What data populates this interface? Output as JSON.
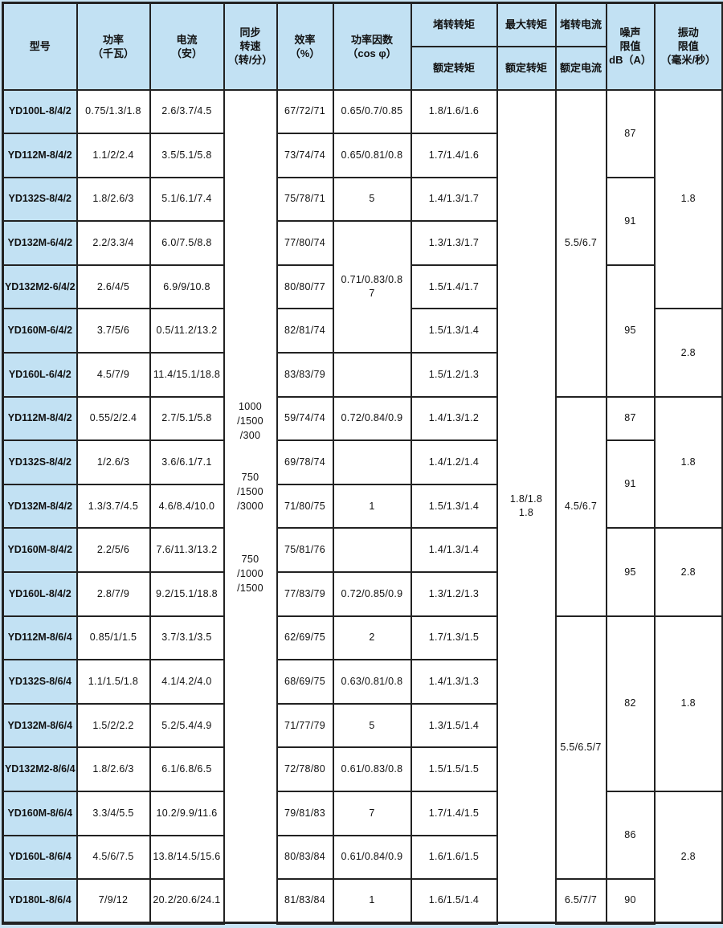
{
  "colors": {
    "page_background": "#c9e4f4",
    "header_background": "#c2e1f3",
    "cell_background": "#ffffff",
    "border": "#222222"
  },
  "header": {
    "model": "型号",
    "power": "功率\n（千瓦）",
    "current": "电流\n（安）",
    "speed": "同步\n转速\n（转/分）",
    "efficiency": "效率\n（%）",
    "cosphi": "功率因数\n（cos φ）",
    "locked_torque": "堵转转矩",
    "rated_torque": "额定转矩",
    "max_torque": "最大转矩",
    "rated_torque2": "额定转矩",
    "locked_current": "堵转电流",
    "rated_current": "额定电流",
    "noise": "噪声\n限值\ndB（A）",
    "vibration": "振动\n限值\n（毫米/秒）"
  },
  "body": {
    "columns": [
      {
        "key": "model",
        "cells": [
          {
            "s": 1,
            "t": "YD100L-8/4/2"
          },
          {
            "s": 1,
            "t": "YD112M-8/4/2"
          },
          {
            "s": 1,
            "t": "YD132S-8/4/2"
          },
          {
            "s": 1,
            "t": "YD132M-6/4/2"
          },
          {
            "s": 1,
            "t": "YD132M2-6/4/2"
          },
          {
            "s": 1,
            "t": "YD160M-6/4/2"
          },
          {
            "s": 1,
            "t": "YD160L-6/4/2"
          },
          {
            "s": 1,
            "t": "YD112M-8/4/2"
          },
          {
            "s": 1,
            "t": "YD132S-8/4/2"
          },
          {
            "s": 1,
            "t": "YD132M-8/4/2"
          },
          {
            "s": 1,
            "t": "YD160M-8/4/2"
          },
          {
            "s": 1,
            "t": "YD160L-8/4/2"
          },
          {
            "s": 1,
            "t": "YD112M-8/6/4"
          },
          {
            "s": 1,
            "t": "YD132S-8/6/4"
          },
          {
            "s": 1,
            "t": "YD132M-8/6/4"
          },
          {
            "s": 1,
            "t": "YD132M2-8/6/4"
          },
          {
            "s": 1,
            "t": "YD160M-8/6/4"
          },
          {
            "s": 1,
            "t": "YD160L-8/6/4"
          },
          {
            "s": 1,
            "t": "YD180L-8/6/4"
          }
        ]
      },
      {
        "key": "power",
        "cells": [
          {
            "s": 1,
            "t": "0.75/1.3/1.8"
          },
          {
            "s": 1,
            "t": "1.1/2/2.4"
          },
          {
            "s": 1,
            "t": "1.8/2.6/3"
          },
          {
            "s": 1,
            "t": "2.2/3.3/4"
          },
          {
            "s": 1,
            "t": "2.6/4/5"
          },
          {
            "s": 1,
            "t": "3.7/5/6"
          },
          {
            "s": 1,
            "t": "4.5/7/9"
          },
          {
            "s": 1,
            "t": "0.55/2/2.4"
          },
          {
            "s": 1,
            "t": "1/2.6/3"
          },
          {
            "s": 1,
            "t": "1.3/3.7/4.5"
          },
          {
            "s": 1,
            "t": "2.2/5/6"
          },
          {
            "s": 1,
            "t": "2.8/7/9"
          },
          {
            "s": 1,
            "t": "0.85/1/1.5"
          },
          {
            "s": 1,
            "t": "1.1/1.5/1.8"
          },
          {
            "s": 1,
            "t": "1.5/2/2.2"
          },
          {
            "s": 1,
            "t": "1.8/2.6/3"
          },
          {
            "s": 1,
            "t": "3.3/4/5.5"
          },
          {
            "s": 1,
            "t": "4.5/6/7.5"
          },
          {
            "s": 1,
            "t": "7/9/12"
          }
        ]
      },
      {
        "key": "current",
        "cells": [
          {
            "s": 1,
            "t": "2.6/3.7/4.5"
          },
          {
            "s": 1,
            "t": "3.5/5.1/5.8"
          },
          {
            "s": 1,
            "t": "5.1/6.1/7.4"
          },
          {
            "s": 1,
            "t": "6.0/7.5/8.8"
          },
          {
            "s": 1,
            "t": "6.9/9/10.8"
          },
          {
            "s": 1,
            "t": "0.5/11.2/13.2"
          },
          {
            "s": 1,
            "t": "11.4/15.1/18.8"
          },
          {
            "s": 1,
            "t": "2.7/5.1/5.8"
          },
          {
            "s": 1,
            "t": "3.6/6.1/7.1"
          },
          {
            "s": 1,
            "t": "4.6/8.4/10.0"
          },
          {
            "s": 1,
            "t": "7.6/11.3/13.2"
          },
          {
            "s": 1,
            "t": "9.2/15.1/18.8"
          },
          {
            "s": 1,
            "t": "3.7/3.1/3.5"
          },
          {
            "s": 1,
            "t": "4.1/4.2/4.0"
          },
          {
            "s": 1,
            "t": "5.2/5.4/4.9"
          },
          {
            "s": 1,
            "t": "6.1/6.8/6.5"
          },
          {
            "s": 1,
            "t": "10.2/9.9/11.6"
          },
          {
            "s": 1,
            "t": "13.8/14.5/15.6"
          },
          {
            "s": 1,
            "t": "20.2/20.6/24.1"
          }
        ]
      },
      {
        "key": "speed",
        "cells": [
          {
            "s": 19,
            "t": "",
            "blocks": [
              {
                "t": "1000\n/1500\n/300"
              },
              {
                "t": "750\n/1500\n/3000"
              },
              {
                "t": "750\n/1000\n/1500"
              }
            ]
          }
        ]
      },
      {
        "key": "efficiency",
        "cells": [
          {
            "s": 1,
            "t": "67/72/71"
          },
          {
            "s": 1,
            "t": "73/74/74"
          },
          {
            "s": 1,
            "t": "75/78/71"
          },
          {
            "s": 1,
            "t": "77/80/74"
          },
          {
            "s": 1,
            "t": "80/80/77"
          },
          {
            "s": 1,
            "t": "82/81/74"
          },
          {
            "s": 1,
            "t": "83/83/79"
          },
          {
            "s": 1,
            "t": "59/74/74"
          },
          {
            "s": 1,
            "t": "69/78/74"
          },
          {
            "s": 1,
            "t": "71/80/75"
          },
          {
            "s": 1,
            "t": "75/81/76"
          },
          {
            "s": 1,
            "t": "77/83/79"
          },
          {
            "s": 1,
            "t": "62/69/75"
          },
          {
            "s": 1,
            "t": "68/69/75"
          },
          {
            "s": 1,
            "t": "71/77/79"
          },
          {
            "s": 1,
            "t": "72/78/80"
          },
          {
            "s": 1,
            "t": "79/81/83"
          },
          {
            "s": 1,
            "t": "80/83/84"
          },
          {
            "s": 1,
            "t": "81/83/84"
          }
        ]
      },
      {
        "key": "cosphi",
        "cells": [
          {
            "s": 1,
            "t": "0.65/0.7/0.85"
          },
          {
            "s": 1,
            "t": "0.65/0.81/0.8"
          },
          {
            "s": 1,
            "t": "5"
          },
          {
            "s": 3,
            "t": "0.71/0.83/0.8\n7"
          },
          {
            "s": 1,
            "t": ""
          },
          {
            "s": 1,
            "t": "0.72/0.84/0.9"
          },
          {
            "s": 1,
            "t": ""
          },
          {
            "s": 1,
            "t": "1"
          },
          {
            "s": 1,
            "t": ""
          },
          {
            "s": 1,
            "t": "0.72/0.85/0.9"
          },
          {
            "s": 1,
            "t": "2"
          },
          {
            "s": 1,
            "t": "0.63/0.81/0.8"
          },
          {
            "s": 1,
            "t": "5"
          },
          {
            "s": 1,
            "t": "0.61/0.83/0.8"
          },
          {
            "s": 1,
            "t": "7"
          },
          {
            "s": 1,
            "t": "0.61/0.84/0.9"
          },
          {
            "s": 1,
            "t": "1"
          }
        ]
      },
      {
        "key": "torque",
        "cells": [
          {
            "s": 1,
            "t": "1.8/1.6/1.6"
          },
          {
            "s": 1,
            "t": "1.7/1.4/1.6"
          },
          {
            "s": 1,
            "t": "1.4/1.3/1.7"
          },
          {
            "s": 1,
            "t": "1.3/1.3/1.7"
          },
          {
            "s": 1,
            "t": "1.5/1.4/1.7"
          },
          {
            "s": 1,
            "t": "1.5/1.3/1.4"
          },
          {
            "s": 1,
            "t": "1.5/1.2/1.3"
          },
          {
            "s": 1,
            "t": "1.4/1.3/1.2"
          },
          {
            "s": 1,
            "t": "1.4/1.2/1.4"
          },
          {
            "s": 1,
            "t": "1.5/1.3/1.4"
          },
          {
            "s": 1,
            "t": "1.4/1.3/1.4"
          },
          {
            "s": 1,
            "t": "1.3/1.2/1.3"
          },
          {
            "s": 1,
            "t": "1.7/1.3/1.5"
          },
          {
            "s": 1,
            "t": "1.4/1.3/1.3"
          },
          {
            "s": 1,
            "t": "1.3/1.5/1.4"
          },
          {
            "s": 1,
            "t": "1.5/1.5/1.5"
          },
          {
            "s": 1,
            "t": "1.7/1.4/1.5"
          },
          {
            "s": 1,
            "t": "1.6/1.6/1.5"
          },
          {
            "s": 1,
            "t": "1.6/1.5/1.4"
          }
        ]
      },
      {
        "key": "maxtorque",
        "cells": [
          {
            "s": 19,
            "t": "1.8/1.8\n1.8"
          }
        ]
      },
      {
        "key": "lockedcurrent",
        "cells": [
          {
            "s": 7,
            "t": "5.5/6.7"
          },
          {
            "s": 5,
            "t": "4.5/6.7"
          },
          {
            "s": 6,
            "t": "5.5/6.5/7"
          },
          {
            "s": 1,
            "t": "6.5/7/7"
          }
        ]
      },
      {
        "key": "noise",
        "cells": [
          {
            "s": 2,
            "t": "87"
          },
          {
            "s": 2,
            "t": "91"
          },
          {
            "s": 3,
            "t": "95"
          },
          {
            "s": 1,
            "t": "87"
          },
          {
            "s": 2,
            "t": "91"
          },
          {
            "s": 2,
            "t": "95"
          },
          {
            "s": 4,
            "t": "82"
          },
          {
            "s": 2,
            "t": "86"
          },
          {
            "s": 1,
            "t": "90"
          }
        ]
      },
      {
        "key": "vibration",
        "cells": [
          {
            "s": 5,
            "t": "1.8"
          },
          {
            "s": 2,
            "t": "2.8"
          },
          {
            "s": 3,
            "t": "1.8"
          },
          {
            "s": 2,
            "t": "2.8"
          },
          {
            "s": 4,
            "t": "1.8"
          },
          {
            "s": 3,
            "t": "2.8"
          }
        ]
      }
    ]
  }
}
